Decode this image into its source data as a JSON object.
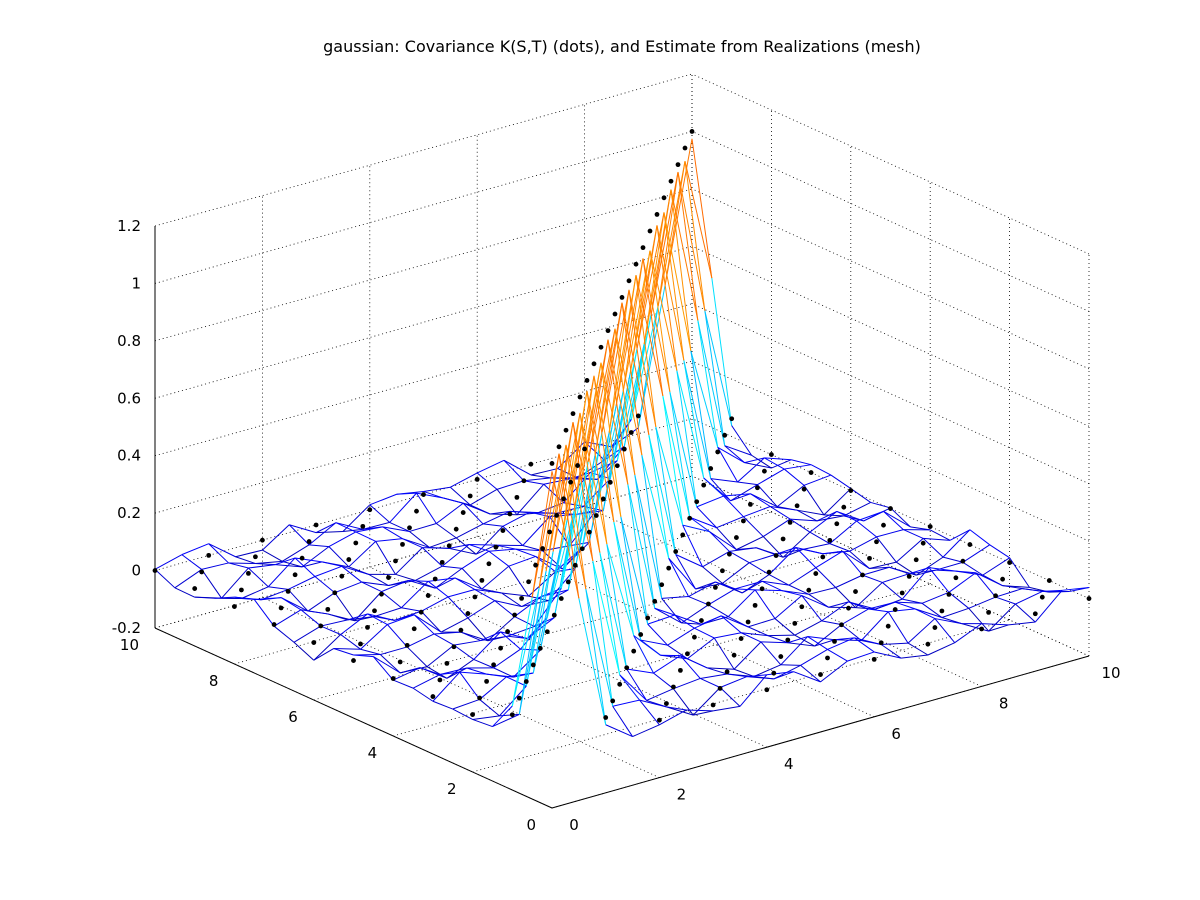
{
  "chart_data": {
    "type": "surface",
    "title": "gaussian: Covariance K(S,T) (dots), and Estimate from Realizations (mesh)",
    "xlabel": "",
    "ylabel": "",
    "zlabel": "",
    "xlim": [
      0,
      10
    ],
    "ylim": [
      0,
      10
    ],
    "zlim": [
      -0.2,
      1.2
    ],
    "x_ticks": [
      "0",
      "2",
      "4",
      "6",
      "8",
      "10"
    ],
    "y_ticks": [
      "0",
      "2",
      "4",
      "6",
      "8",
      "10"
    ],
    "z_ticks": [
      "-0.2",
      "0",
      "0.2",
      "0.4",
      "0.6",
      "0.8",
      "1",
      "1.2"
    ],
    "grid": true,
    "colormap": "jet",
    "dot_color": "#000000",
    "series": [
      {
        "kind": "dots",
        "description_in_title": "Covariance K(S,T)",
        "grid_size": 21,
        "peak_value": 1.0,
        "correlation_length": 0.6
      },
      {
        "kind": "mesh",
        "description_in_title": "Estimate from Realizations",
        "grid_size": 21,
        "peak_value": 0.96,
        "noise_amplitude": 0.06
      }
    ]
  }
}
